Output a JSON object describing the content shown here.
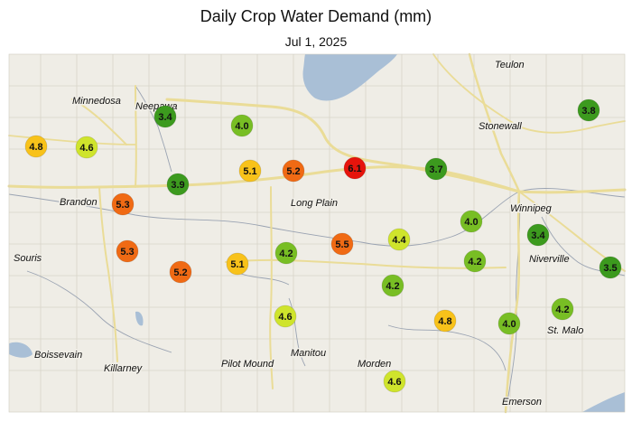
{
  "header": {
    "title": "Daily Crop Water Demand (mm)",
    "date": "Jul 1, 2025"
  },
  "colors": {
    "map_background": "#efede6",
    "water": "#a9bfd6",
    "roads": "#eadc97",
    "grid": "#d8d4c8",
    "rivers": "#9aa3b2"
  },
  "legend_scale": [
    {
      "min": 6.0,
      "color": "#e6140c"
    },
    {
      "min": 5.2,
      "color": "#f06a14"
    },
    {
      "min": 4.8,
      "color": "#f8c21a"
    },
    {
      "min": 4.4,
      "color": "#cfe42c"
    },
    {
      "min": 4.0,
      "color": "#78be24"
    },
    {
      "min": 0.0,
      "color": "#3c9a1e"
    }
  ],
  "towns": [
    {
      "name": "Teulon"
    },
    {
      "name": "Minnedosa"
    },
    {
      "name": "Neepawa"
    },
    {
      "name": "Stonewall"
    },
    {
      "name": "Winnipeg"
    },
    {
      "name": "Brandon"
    },
    {
      "name": "Long Plain"
    },
    {
      "name": "Souris"
    },
    {
      "name": "Niverville"
    },
    {
      "name": "St. Malo"
    },
    {
      "name": "Boissevain"
    },
    {
      "name": "Manitou"
    },
    {
      "name": "Pilot Mound"
    },
    {
      "name": "Morden"
    },
    {
      "name": "Killarney"
    },
    {
      "name": "Emerson"
    }
  ],
  "stations": [
    {
      "value": "4.8"
    },
    {
      "value": "4.6"
    },
    {
      "value": "3.4"
    },
    {
      "value": "4.0"
    },
    {
      "value": "3.9"
    },
    {
      "value": "5.1"
    },
    {
      "value": "5.2"
    },
    {
      "value": "6.1"
    },
    {
      "value": "3.7"
    },
    {
      "value": "3.8"
    },
    {
      "value": "5.3"
    },
    {
      "value": "5.3"
    },
    {
      "value": "5.2"
    },
    {
      "value": "5.1"
    },
    {
      "value": "4.2"
    },
    {
      "value": "5.5"
    },
    {
      "value": "4.4"
    },
    {
      "value": "4.0"
    },
    {
      "value": "3.4"
    },
    {
      "value": "4.2"
    },
    {
      "value": "4.2"
    },
    {
      "value": "3.5"
    },
    {
      "value": "4.6"
    },
    {
      "value": "4.8"
    },
    {
      "value": "4.0"
    },
    {
      "value": "4.2"
    },
    {
      "value": "4.6"
    }
  ]
}
